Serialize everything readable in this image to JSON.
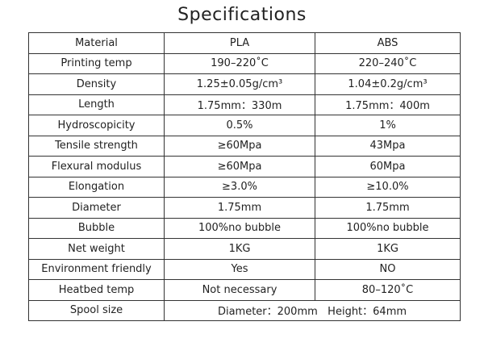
{
  "title": "Specifications",
  "table": {
    "header": [
      "Material",
      "PLA",
      "ABS"
    ],
    "rows": [
      [
        "Printing temp",
        "190–220˚C",
        "220–240˚C"
      ],
      [
        "Density",
        "1.25±0.05g/cm³",
        "1.04±0.2g/cm³"
      ],
      [
        "Length",
        "1.75mm：330m",
        "1.75mm：400m"
      ],
      [
        "Hydroscopicity",
        "0.5%",
        "1%"
      ],
      [
        "Tensile strength",
        "≥60Mpa",
        "43Mpa"
      ],
      [
        "Flexural modulus",
        "≥60Mpa",
        "60Mpa"
      ],
      [
        "Elongation",
        "≥3.0%",
        "≥10.0%"
      ],
      [
        "Diameter",
        "1.75mm",
        "1.75mm"
      ],
      [
        "Bubble",
        "100%no bubble",
        "100%no bubble"
      ],
      [
        "Net weight",
        "1KG",
        "1KG"
      ],
      [
        "Environment friendly",
        "Yes",
        "NO"
      ],
      [
        "Heatbed temp",
        "Not necessary",
        "80–120˚C"
      ],
      [
        "Spool size",
        "Diameter：200mm   Height：64mm"
      ]
    ]
  }
}
